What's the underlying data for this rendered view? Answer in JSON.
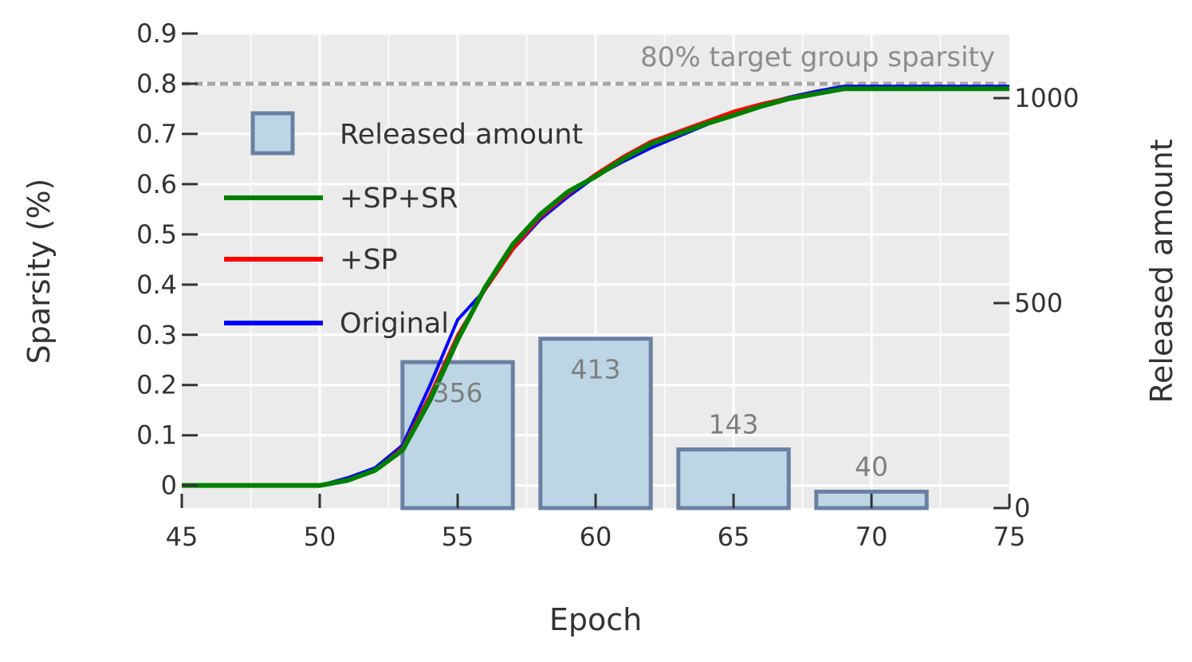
{
  "chart_data": {
    "type": "bar+line",
    "xlabel": "Epoch",
    "ylabel": "Sparsity (%)",
    "y2label": "Released amount",
    "xlim": [
      45,
      75
    ],
    "ylim": [
      -0.045,
      0.9
    ],
    "y2lim": [
      0,
      1000
    ],
    "x_ticks": [
      "45",
      "50",
      "55",
      "60",
      "65",
      "70",
      "75"
    ],
    "x_tick_values": [
      45,
      50,
      55,
      60,
      65,
      70,
      75
    ],
    "y_ticks": [
      "0",
      "0.1",
      "0.2",
      "0.3",
      "0.4",
      "0.5",
      "0.6",
      "0.7",
      "0.8",
      "0.9"
    ],
    "y_tick_values": [
      0,
      0.1,
      0.2,
      0.3,
      0.4,
      0.5,
      0.6,
      0.7,
      0.8,
      0.9
    ],
    "y2_ticks": [
      "0",
      "500",
      "1000"
    ],
    "y2_tick_values": [
      0,
      500,
      1000
    ],
    "grid": true,
    "legend_position": "top-left",
    "reference_line": {
      "y": 0.8,
      "label": "80% target group sparsity",
      "color": "#a6a6a6"
    },
    "bars": {
      "name": "Released amount",
      "axis": "y2",
      "x": [
        45,
        50,
        55,
        60,
        65,
        70,
        75
      ],
      "values": [
        0,
        0,
        356,
        413,
        143,
        40,
        0
      ],
      "labels": [
        "",
        "",
        "356",
        "413",
        "143",
        "40",
        ""
      ],
      "fill": "#bcd6e6",
      "stroke": "#6a80a3"
    },
    "series": [
      {
        "name": "Original",
        "color": "#0000ff",
        "x": [
          45,
          46,
          47,
          48,
          49,
          50,
          51,
          52,
          53,
          54,
          55,
          56,
          57,
          58,
          59,
          60,
          61,
          62,
          63,
          64,
          65,
          66,
          67,
          68,
          69,
          70,
          71,
          72,
          73,
          74,
          75
        ],
        "values": [
          0,
          0,
          0,
          0,
          0,
          0,
          0.015,
          0.035,
          0.08,
          0.2,
          0.33,
          0.39,
          0.47,
          0.53,
          0.575,
          0.615,
          0.645,
          0.672,
          0.695,
          0.718,
          0.74,
          0.758,
          0.773,
          0.785,
          0.795,
          0.795,
          0.795,
          0.795,
          0.795,
          0.795,
          0.795
        ]
      },
      {
        "name": "+SP",
        "color": "#ff0000",
        "x": [
          45,
          46,
          47,
          48,
          49,
          50,
          51,
          52,
          53,
          54,
          55,
          56,
          57,
          58,
          59,
          60,
          61,
          62,
          63,
          64,
          65,
          66,
          67,
          68,
          69,
          70,
          71,
          72,
          73,
          74,
          75
        ],
        "values": [
          0,
          0,
          0,
          0,
          0,
          0,
          0.01,
          0.03,
          0.075,
          0.18,
          0.3,
          0.39,
          0.47,
          0.535,
          0.58,
          0.62,
          0.655,
          0.685,
          0.705,
          0.725,
          0.745,
          0.76,
          0.772,
          0.782,
          0.79,
          0.79,
          0.79,
          0.79,
          0.79,
          0.79,
          0.79
        ]
      },
      {
        "name": "+SP+SR",
        "color": "#008000",
        "x": [
          45,
          46,
          47,
          48,
          49,
          50,
          51,
          52,
          53,
          54,
          55,
          56,
          57,
          58,
          59,
          60,
          61,
          62,
          63,
          64,
          65,
          66,
          67,
          68,
          69,
          70,
          71,
          72,
          73,
          74,
          75
        ],
        "values": [
          0,
          0,
          0,
          0,
          0,
          0,
          0.01,
          0.03,
          0.07,
          0.17,
          0.29,
          0.395,
          0.48,
          0.54,
          0.585,
          0.615,
          0.65,
          0.68,
          0.7,
          0.72,
          0.737,
          0.755,
          0.77,
          0.78,
          0.79,
          0.79,
          0.79,
          0.79,
          0.79,
          0.79,
          0.79
        ]
      }
    ],
    "legend": [
      {
        "name": "Released amount",
        "kind": "bar",
        "color": "#bcd6e6",
        "stroke": "#6a80a3"
      },
      {
        "name": "+SP+SR",
        "kind": "line",
        "color": "#008000"
      },
      {
        "name": "+SP",
        "kind": "line",
        "color": "#ff0000"
      },
      {
        "name": "Original",
        "kind": "line",
        "color": "#0000ff"
      }
    ]
  }
}
